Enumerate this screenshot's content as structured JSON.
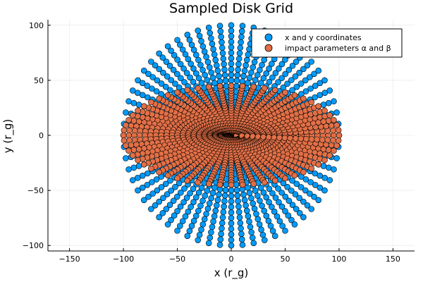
{
  "chart_data": {
    "type": "scatter",
    "title": "Sampled Disk Grid",
    "xlabel": "x (r_g)",
    "ylabel": "y (r_g)",
    "xlim": [
      -170,
      170
    ],
    "ylim": [
      -105,
      105
    ],
    "xticks": [
      -150,
      -100,
      -50,
      0,
      50,
      100,
      150
    ],
    "yticks": [
      -100,
      -50,
      0,
      50,
      100
    ],
    "xtick_labels": [
      "−150",
      "−100",
      "−50",
      "0",
      "50",
      "100",
      "150"
    ],
    "ytick_labels": [
      "−100",
      "−50",
      "0",
      "50",
      "100"
    ],
    "grid": true,
    "legend_position": "top-right",
    "series": [
      {
        "name": "x and y coordinates",
        "color": "#009af9",
        "shape": "disk",
        "r_max": 100,
        "y_scale": 1.0,
        "rings": 20,
        "angular_samples": 60
      },
      {
        "name": "impact parameters α and β",
        "color": "#e26f46",
        "shape": "ellipse",
        "r_max": 100,
        "y_scale": 0.45,
        "rings": 20,
        "angular_samples": 60
      }
    ]
  }
}
